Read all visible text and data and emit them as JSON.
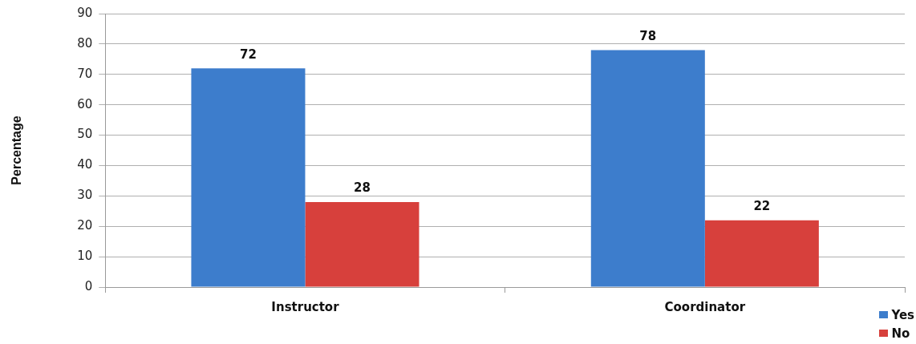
{
  "chart_data": {
    "type": "bar",
    "ylabel": "Percentage",
    "categories": [
      "Instructor",
      "Coordinator"
    ],
    "series": [
      {
        "name": "Yes",
        "color": "#3d7dcc",
        "values": [
          72,
          78
        ]
      },
      {
        "name": "No",
        "color": "#d7403c",
        "values": [
          28,
          22
        ]
      }
    ],
    "ylim": [
      0,
      90
    ],
    "yticks": [
      0,
      10,
      20,
      30,
      40,
      50,
      60,
      70,
      80,
      90
    ],
    "grid": "y",
    "legend": "bottom right",
    "data_labels": true
  }
}
